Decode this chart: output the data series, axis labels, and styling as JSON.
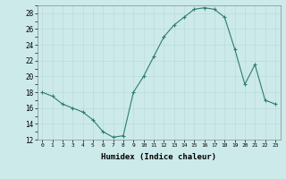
{
  "x": [
    0,
    1,
    2,
    3,
    4,
    5,
    6,
    7,
    8,
    9,
    10,
    11,
    12,
    13,
    14,
    15,
    16,
    17,
    18,
    19,
    20,
    21,
    22,
    23
  ],
  "y": [
    18,
    17.5,
    16.5,
    16,
    15.5,
    14.5,
    13.0,
    12.3,
    12.5,
    18,
    20,
    22.5,
    25,
    26.5,
    27.5,
    28.5,
    28.7,
    28.5,
    27.5,
    23.5,
    19,
    21.5,
    17,
    16.5
  ],
  "line_color": "#2e7d6e",
  "marker": "+",
  "marker_size": 3,
  "bg_color": "#cceaea",
  "grid_major_color": "#b8d8d8",
  "grid_minor_color": "#d0e8e8",
  "xlabel": "Humidex (Indice chaleur)",
  "ylim": [
    12,
    29
  ],
  "xlim": [
    -0.5,
    23.5
  ],
  "yticks": [
    12,
    14,
    16,
    18,
    20,
    22,
    24,
    26,
    28
  ],
  "xticks": [
    0,
    1,
    2,
    3,
    4,
    5,
    6,
    7,
    8,
    9,
    10,
    11,
    12,
    13,
    14,
    15,
    16,
    17,
    18,
    19,
    20,
    21,
    22,
    23
  ]
}
